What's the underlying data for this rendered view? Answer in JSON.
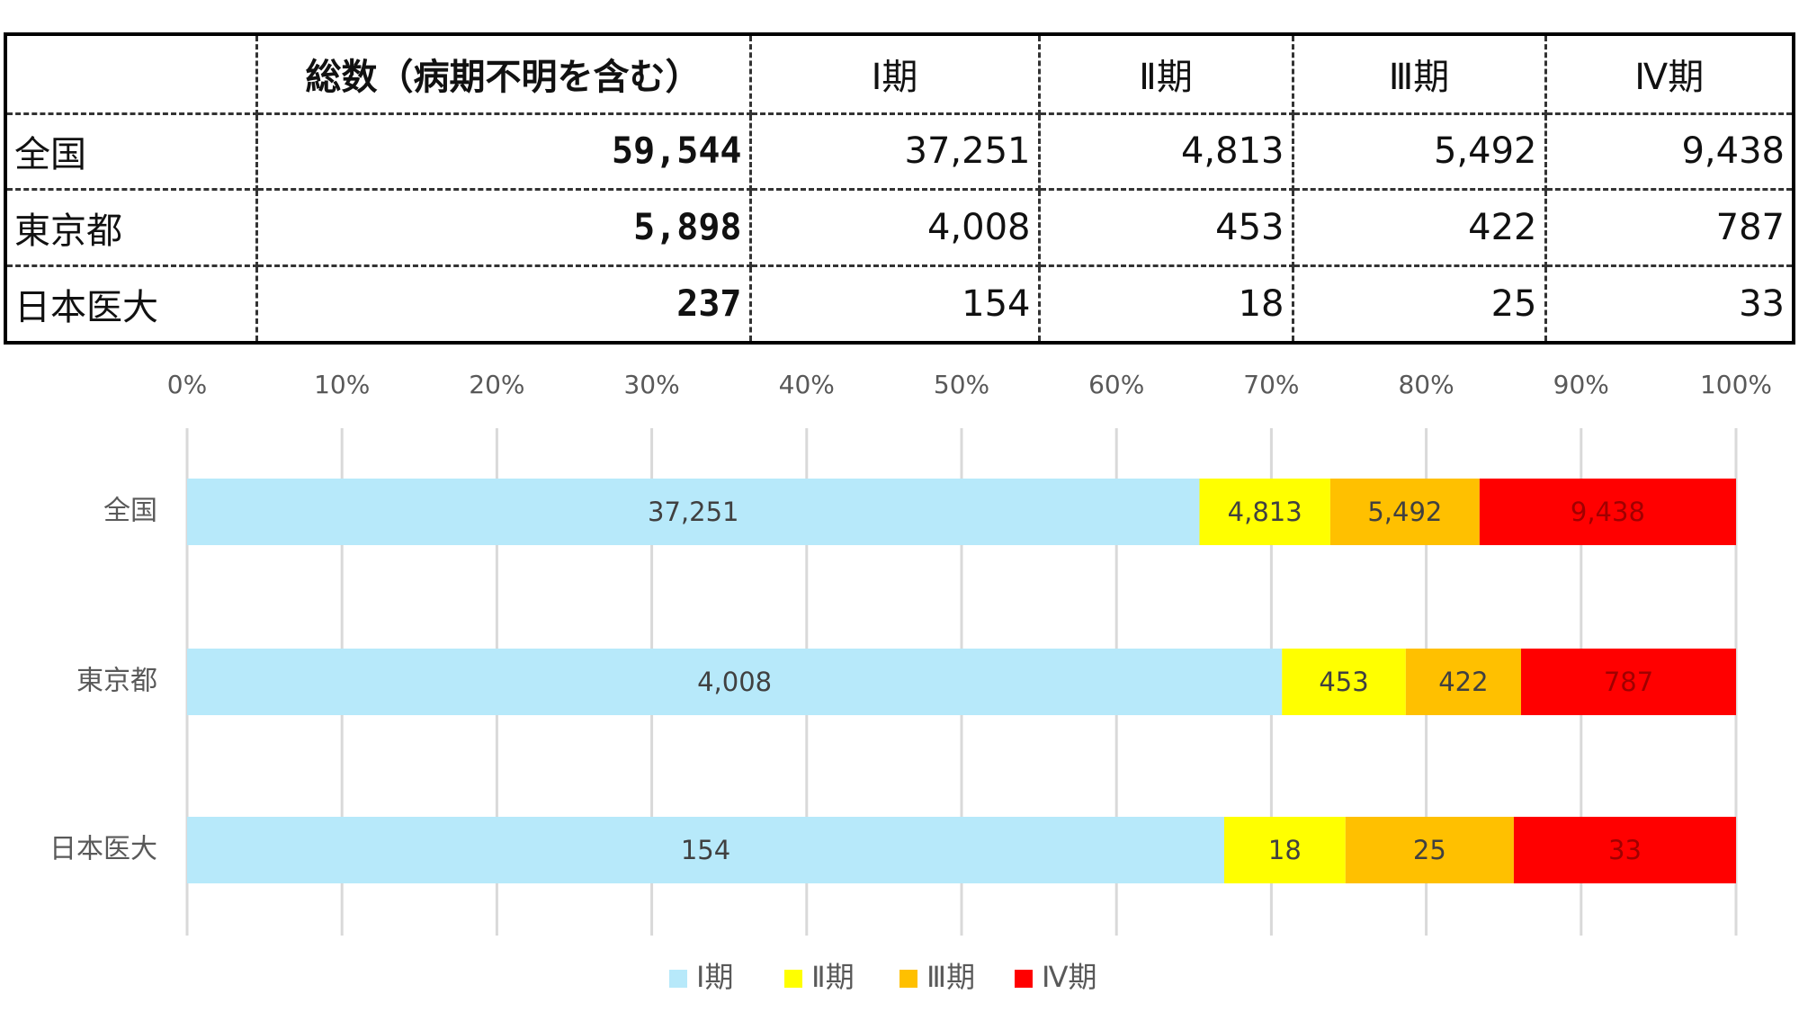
{
  "table": {
    "columns": [
      "総数（病期不明を含む）",
      "Ⅰ期",
      "Ⅱ期",
      "Ⅲ期",
      "Ⅳ期"
    ],
    "rows": [
      {
        "label": "全国",
        "cells": [
          "59,544",
          "37,251",
          "4,813",
          "5,492",
          "9,438"
        ]
      },
      {
        "label": "東京都",
        "cells": [
          "5,898",
          "4,008",
          "453",
          "422",
          "787"
        ]
      },
      {
        "label": "日本医大",
        "cells": [
          "237",
          "154",
          "18",
          "25",
          "33"
        ]
      }
    ]
  },
  "chart_data": {
    "type": "stacked_bar_100",
    "orientation": "horizontal",
    "categories": [
      "全国",
      "東京都",
      "日本医大"
    ],
    "series": [
      {
        "name": "Ⅰ期",
        "color": "#b7e9fa",
        "values": [
          37251,
          4008,
          154
        ],
        "value_labels": [
          "37,251",
          "4,008",
          "154"
        ]
      },
      {
        "name": "Ⅱ期",
        "color": "#ffff00",
        "values": [
          4813,
          453,
          18
        ],
        "value_labels": [
          "4,813",
          "453",
          "18"
        ]
      },
      {
        "name": "Ⅲ期",
        "color": "#ffc000",
        "values": [
          5492,
          422,
          25
        ],
        "value_labels": [
          "5,492",
          "422",
          "25"
        ]
      },
      {
        "name": "Ⅳ期",
        "color": "#ff0000",
        "values": [
          9438,
          787,
          33
        ],
        "value_labels": [
          "9,438",
          "787",
          "33"
        ]
      }
    ],
    "xlim": [
      0,
      100
    ],
    "xticks": [
      {
        "value": 0,
        "label": "0%"
      },
      {
        "value": 10,
        "label": "10%"
      },
      {
        "value": 20,
        "label": "20%"
      },
      {
        "value": 30,
        "label": "30%"
      },
      {
        "value": 40,
        "label": "40%"
      },
      {
        "value": 50,
        "label": "50%"
      },
      {
        "value": 60,
        "label": "60%"
      },
      {
        "value": 70,
        "label": "70%"
      },
      {
        "value": 80,
        "label": "80%"
      },
      {
        "value": 90,
        "label": "90%"
      },
      {
        "value": 100,
        "label": "100%"
      }
    ],
    "grid": true,
    "legend": "bottom"
  }
}
